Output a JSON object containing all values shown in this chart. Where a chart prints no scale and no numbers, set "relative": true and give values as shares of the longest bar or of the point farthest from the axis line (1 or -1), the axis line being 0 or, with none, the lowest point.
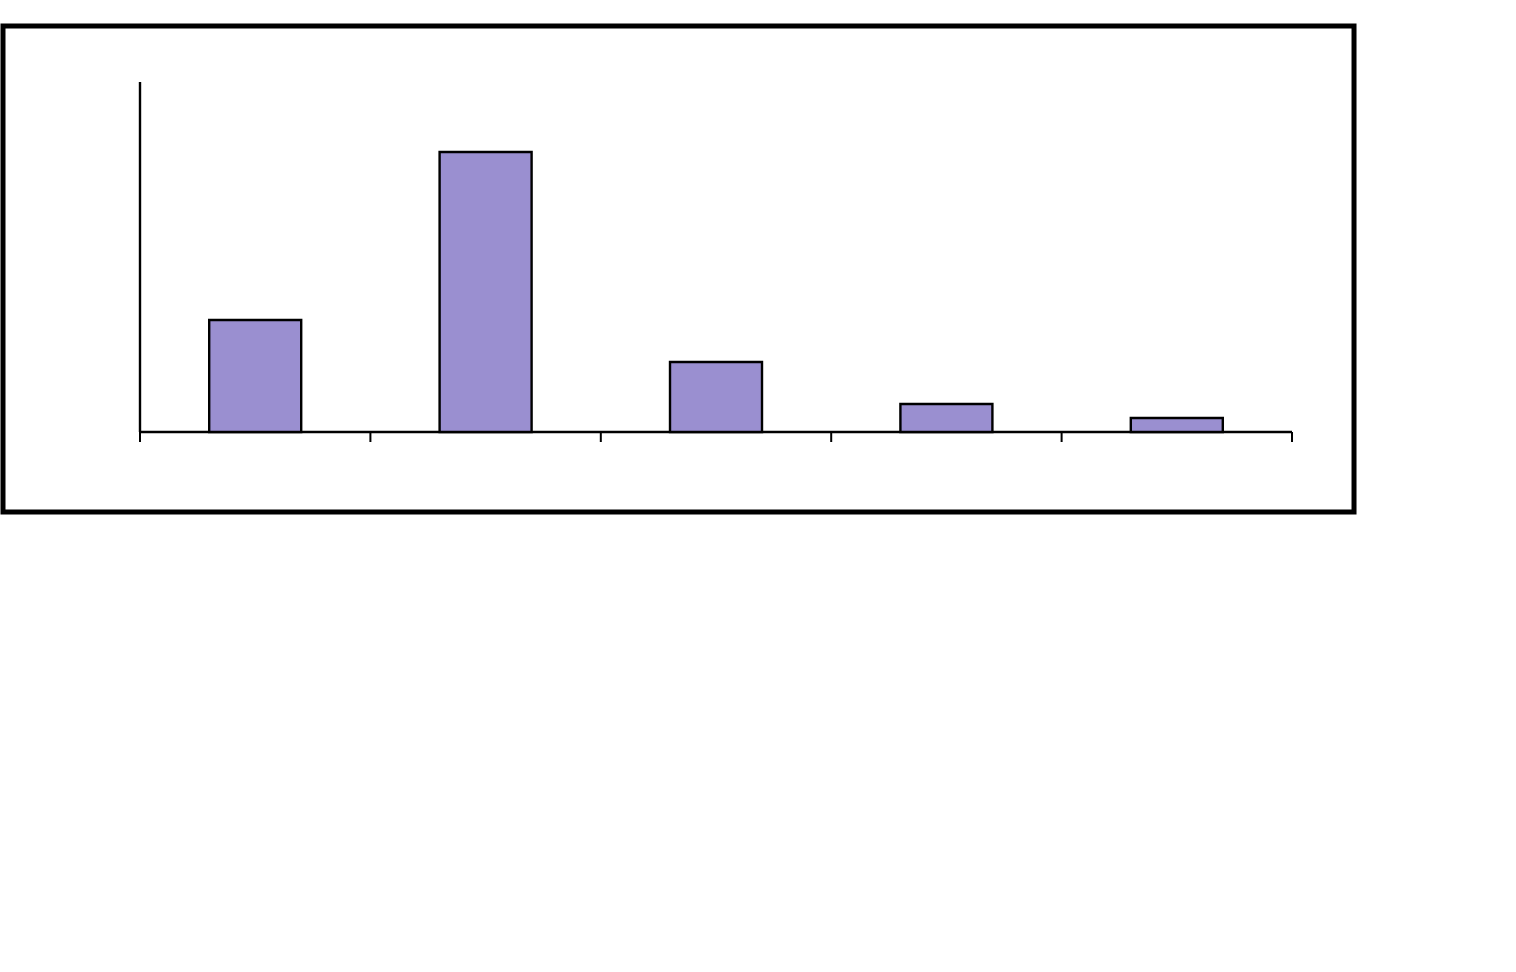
{
  "chart_data": {
    "type": "bar",
    "relative": true,
    "categories": [
      null,
      null,
      null,
      null,
      null
    ],
    "values": [
      0.4,
      1,
      0.25,
      0.1,
      0.05
    ],
    "color": "#9a8fd0"
  }
}
